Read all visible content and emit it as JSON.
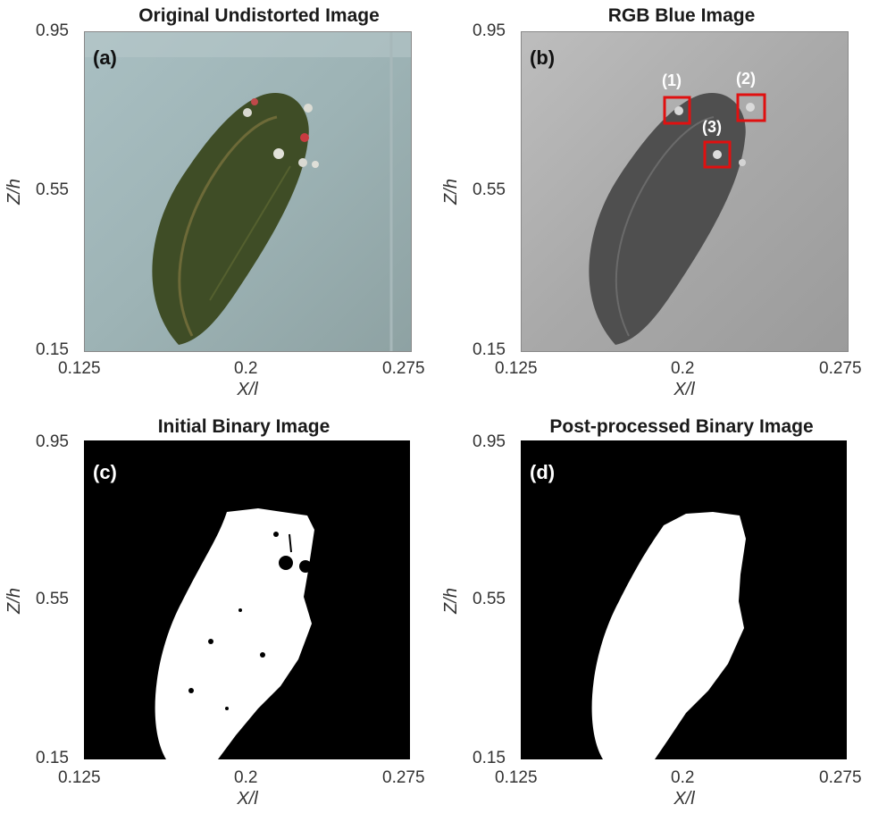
{
  "figure": {
    "panels": [
      {
        "id": "a",
        "title": "Original Undistorted Image",
        "letter": "(a)",
        "kind": "photo-color"
      },
      {
        "id": "b",
        "title": "RGB Blue Image",
        "letter": "(b)",
        "kind": "photo-blue",
        "boxes": [
          {
            "label": "(1)"
          },
          {
            "label": "(2)"
          },
          {
            "label": "(3)"
          }
        ]
      },
      {
        "id": "c",
        "title": "Initial Binary Image",
        "letter": "(c)",
        "kind": "binary-initial"
      },
      {
        "id": "d",
        "title": "Post-processed Binary Image",
        "letter": "(d)",
        "kind": "binary-final"
      }
    ],
    "xaxis": {
      "label": "X/l",
      "ticks": [
        "0.125",
        "0.2",
        "0.275"
      ],
      "range": [
        0.125,
        0.275
      ]
    },
    "yaxis": {
      "label": "Z/h",
      "ticks": [
        "0.95",
        "0.55",
        "0.15"
      ],
      "range": [
        0.15,
        0.95
      ]
    },
    "colors": {
      "box": "#e01010",
      "plant": "#3b4a22",
      "water": "#9fb2b4",
      "binary_fg": "#ffffff",
      "binary_bg": "#000000"
    }
  }
}
